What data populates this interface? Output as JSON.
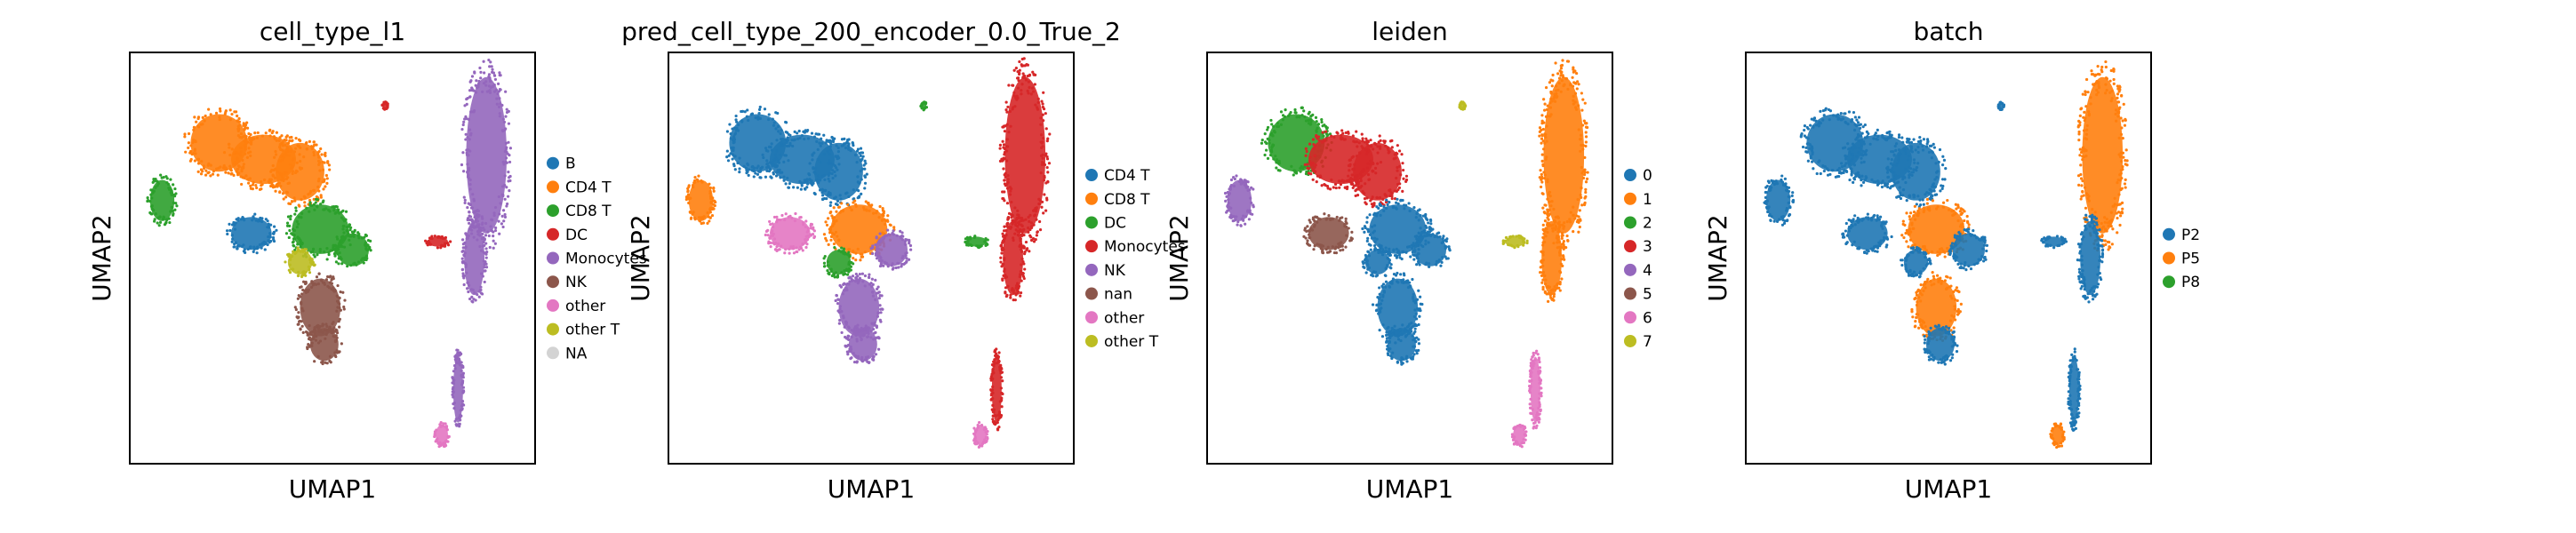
{
  "chart_data": [
    {
      "type": "scatter",
      "title": "cell_type_l1",
      "xlabel": "UMAP1",
      "ylabel": "UMAP2",
      "grid": false,
      "legend_position": "right",
      "legend": [
        {
          "label": "B",
          "color": "#1f77b4"
        },
        {
          "label": "CD4 T",
          "color": "#ff7f0e"
        },
        {
          "label": "CD8 T",
          "color": "#2ca02c"
        },
        {
          "label": "DC",
          "color": "#d62728"
        },
        {
          "label": "Monocytes",
          "color": "#9467bd"
        },
        {
          "label": "NK",
          "color": "#8c564b"
        },
        {
          "label": "other",
          "color": "#e377c2"
        },
        {
          "label": "other T",
          "color": "#bcbd22"
        },
        {
          "label": "NA",
          "color": "#d3d3d3"
        }
      ],
      "regions": [
        {
          "color": "#ff7f0e",
          "x": 0.22,
          "y": 0.78,
          "rx": 0.07,
          "ry": 0.07
        },
        {
          "color": "#ff7f0e",
          "x": 0.33,
          "y": 0.74,
          "rx": 0.08,
          "ry": 0.06
        },
        {
          "color": "#ff7f0e",
          "x": 0.42,
          "y": 0.71,
          "rx": 0.06,
          "ry": 0.07
        },
        {
          "color": "#2ca02c",
          "x": 0.08,
          "y": 0.64,
          "rx": 0.03,
          "ry": 0.05
        },
        {
          "color": "#1f77b4",
          "x": 0.3,
          "y": 0.56,
          "rx": 0.05,
          "ry": 0.04
        },
        {
          "color": "#2ca02c",
          "x": 0.47,
          "y": 0.57,
          "rx": 0.07,
          "ry": 0.06
        },
        {
          "color": "#2ca02c",
          "x": 0.55,
          "y": 0.52,
          "rx": 0.04,
          "ry": 0.04
        },
        {
          "color": "#bcbd22",
          "x": 0.42,
          "y": 0.49,
          "rx": 0.03,
          "ry": 0.03
        },
        {
          "color": "#8c564b",
          "x": 0.47,
          "y": 0.38,
          "rx": 0.05,
          "ry": 0.07
        },
        {
          "color": "#8c564b",
          "x": 0.48,
          "y": 0.29,
          "rx": 0.035,
          "ry": 0.04
        },
        {
          "color": "#9467bd",
          "x": 0.88,
          "y": 0.75,
          "rx": 0.05,
          "ry": 0.19
        },
        {
          "color": "#9467bd",
          "x": 0.85,
          "y": 0.5,
          "rx": 0.025,
          "ry": 0.09
        },
        {
          "color": "#9467bd",
          "x": 0.81,
          "y": 0.18,
          "rx": 0.012,
          "ry": 0.08
        },
        {
          "color": "#d62728",
          "x": 0.76,
          "y": 0.54,
          "rx": 0.025,
          "ry": 0.012
        },
        {
          "color": "#e377c2",
          "x": 0.77,
          "y": 0.07,
          "rx": 0.015,
          "ry": 0.025
        },
        {
          "color": "#d62728",
          "x": 0.63,
          "y": 0.87,
          "rx": 0.006,
          "ry": 0.008
        }
      ]
    },
    {
      "type": "scatter",
      "title": "pred_cell_type_200_encoder_0.0_True_2",
      "xlabel": "UMAP1",
      "ylabel": "UMAP2",
      "grid": false,
      "legend_position": "right",
      "legend": [
        {
          "label": "CD4 T",
          "color": "#1f77b4"
        },
        {
          "label": "CD8 T",
          "color": "#ff7f0e"
        },
        {
          "label": "DC",
          "color": "#2ca02c"
        },
        {
          "label": "Monocytes",
          "color": "#d62728"
        },
        {
          "label": "NK",
          "color": "#9467bd"
        },
        {
          "label": "nan",
          "color": "#8c564b"
        },
        {
          "label": "other",
          "color": "#e377c2"
        },
        {
          "label": "other T",
          "color": "#bcbd22"
        }
      ],
      "regions": [
        {
          "color": "#1f77b4",
          "x": 0.22,
          "y": 0.78,
          "rx": 0.07,
          "ry": 0.07
        },
        {
          "color": "#1f77b4",
          "x": 0.33,
          "y": 0.74,
          "rx": 0.08,
          "ry": 0.06
        },
        {
          "color": "#1f77b4",
          "x": 0.42,
          "y": 0.71,
          "rx": 0.06,
          "ry": 0.07
        },
        {
          "color": "#ff7f0e",
          "x": 0.08,
          "y": 0.64,
          "rx": 0.03,
          "ry": 0.05
        },
        {
          "color": "#e377c2",
          "x": 0.3,
          "y": 0.56,
          "rx": 0.05,
          "ry": 0.04
        },
        {
          "color": "#ff7f0e",
          "x": 0.47,
          "y": 0.57,
          "rx": 0.07,
          "ry": 0.06
        },
        {
          "color": "#9467bd",
          "x": 0.55,
          "y": 0.52,
          "rx": 0.04,
          "ry": 0.04
        },
        {
          "color": "#2ca02c",
          "x": 0.42,
          "y": 0.49,
          "rx": 0.03,
          "ry": 0.03
        },
        {
          "color": "#9467bd",
          "x": 0.47,
          "y": 0.38,
          "rx": 0.05,
          "ry": 0.07
        },
        {
          "color": "#9467bd",
          "x": 0.48,
          "y": 0.29,
          "rx": 0.035,
          "ry": 0.04
        },
        {
          "color": "#d62728",
          "x": 0.88,
          "y": 0.75,
          "rx": 0.05,
          "ry": 0.19
        },
        {
          "color": "#d62728",
          "x": 0.85,
          "y": 0.5,
          "rx": 0.025,
          "ry": 0.09
        },
        {
          "color": "#d62728",
          "x": 0.81,
          "y": 0.18,
          "rx": 0.012,
          "ry": 0.08
        },
        {
          "color": "#2ca02c",
          "x": 0.76,
          "y": 0.54,
          "rx": 0.025,
          "ry": 0.012
        },
        {
          "color": "#e377c2",
          "x": 0.77,
          "y": 0.07,
          "rx": 0.015,
          "ry": 0.025
        },
        {
          "color": "#2ca02c",
          "x": 0.63,
          "y": 0.87,
          "rx": 0.006,
          "ry": 0.008
        }
      ]
    },
    {
      "type": "scatter",
      "title": "leiden",
      "xlabel": "UMAP1",
      "ylabel": "UMAP2",
      "grid": false,
      "legend_position": "right",
      "legend": [
        {
          "label": "0",
          "color": "#1f77b4"
        },
        {
          "label": "1",
          "color": "#ff7f0e"
        },
        {
          "label": "2",
          "color": "#2ca02c"
        },
        {
          "label": "3",
          "color": "#d62728"
        },
        {
          "label": "4",
          "color": "#9467bd"
        },
        {
          "label": "5",
          "color": "#8c564b"
        },
        {
          "label": "6",
          "color": "#e377c2"
        },
        {
          "label": "7",
          "color": "#bcbd22"
        }
      ],
      "regions": [
        {
          "color": "#2ca02c",
          "x": 0.22,
          "y": 0.78,
          "rx": 0.07,
          "ry": 0.07
        },
        {
          "color": "#d62728",
          "x": 0.33,
          "y": 0.74,
          "rx": 0.08,
          "ry": 0.06
        },
        {
          "color": "#d62728",
          "x": 0.42,
          "y": 0.71,
          "rx": 0.06,
          "ry": 0.07
        },
        {
          "color": "#9467bd",
          "x": 0.08,
          "y": 0.64,
          "rx": 0.03,
          "ry": 0.05
        },
        {
          "color": "#8c564b",
          "x": 0.3,
          "y": 0.56,
          "rx": 0.05,
          "ry": 0.04
        },
        {
          "color": "#1f77b4",
          "x": 0.47,
          "y": 0.57,
          "rx": 0.07,
          "ry": 0.06
        },
        {
          "color": "#1f77b4",
          "x": 0.55,
          "y": 0.52,
          "rx": 0.04,
          "ry": 0.04
        },
        {
          "color": "#1f77b4",
          "x": 0.42,
          "y": 0.49,
          "rx": 0.03,
          "ry": 0.03
        },
        {
          "color": "#1f77b4",
          "x": 0.47,
          "y": 0.38,
          "rx": 0.05,
          "ry": 0.07
        },
        {
          "color": "#1f77b4",
          "x": 0.48,
          "y": 0.29,
          "rx": 0.035,
          "ry": 0.04
        },
        {
          "color": "#ff7f0e",
          "x": 0.88,
          "y": 0.75,
          "rx": 0.05,
          "ry": 0.19
        },
        {
          "color": "#ff7f0e",
          "x": 0.85,
          "y": 0.5,
          "rx": 0.025,
          "ry": 0.09
        },
        {
          "color": "#e377c2",
          "x": 0.81,
          "y": 0.18,
          "rx": 0.012,
          "ry": 0.08
        },
        {
          "color": "#bcbd22",
          "x": 0.76,
          "y": 0.54,
          "rx": 0.025,
          "ry": 0.012
        },
        {
          "color": "#e377c2",
          "x": 0.77,
          "y": 0.07,
          "rx": 0.015,
          "ry": 0.025
        },
        {
          "color": "#bcbd22",
          "x": 0.63,
          "y": 0.87,
          "rx": 0.006,
          "ry": 0.008
        }
      ]
    },
    {
      "type": "scatter",
      "title": "batch",
      "xlabel": "UMAP1",
      "ylabel": "UMAP2",
      "grid": false,
      "legend_position": "right",
      "legend": [
        {
          "label": "P2",
          "color": "#1f77b4"
        },
        {
          "label": "P5",
          "color": "#ff7f0e"
        },
        {
          "label": "P8",
          "color": "#2ca02c"
        }
      ],
      "regions": [
        {
          "color": "#1f77b4",
          "x": 0.22,
          "y": 0.78,
          "rx": 0.07,
          "ry": 0.07
        },
        {
          "color": "#1f77b4",
          "x": 0.33,
          "y": 0.74,
          "rx": 0.08,
          "ry": 0.06
        },
        {
          "color": "#1f77b4",
          "x": 0.42,
          "y": 0.71,
          "rx": 0.06,
          "ry": 0.07
        },
        {
          "color": "#1f77b4",
          "x": 0.08,
          "y": 0.64,
          "rx": 0.03,
          "ry": 0.05
        },
        {
          "color": "#1f77b4",
          "x": 0.3,
          "y": 0.56,
          "rx": 0.05,
          "ry": 0.04
        },
        {
          "color": "#ff7f0e",
          "x": 0.47,
          "y": 0.57,
          "rx": 0.07,
          "ry": 0.06
        },
        {
          "color": "#1f77b4",
          "x": 0.55,
          "y": 0.52,
          "rx": 0.04,
          "ry": 0.04
        },
        {
          "color": "#1f77b4",
          "x": 0.42,
          "y": 0.49,
          "rx": 0.03,
          "ry": 0.03
        },
        {
          "color": "#ff7f0e",
          "x": 0.47,
          "y": 0.38,
          "rx": 0.05,
          "ry": 0.07
        },
        {
          "color": "#1f77b4",
          "x": 0.48,
          "y": 0.29,
          "rx": 0.035,
          "ry": 0.04
        },
        {
          "color": "#ff7f0e",
          "x": 0.88,
          "y": 0.75,
          "rx": 0.05,
          "ry": 0.19
        },
        {
          "color": "#1f77b4",
          "x": 0.85,
          "y": 0.5,
          "rx": 0.025,
          "ry": 0.09
        },
        {
          "color": "#1f77b4",
          "x": 0.81,
          "y": 0.18,
          "rx": 0.012,
          "ry": 0.08
        },
        {
          "color": "#1f77b4",
          "x": 0.76,
          "y": 0.54,
          "rx": 0.025,
          "ry": 0.012
        },
        {
          "color": "#ff7f0e",
          "x": 0.77,
          "y": 0.07,
          "rx": 0.015,
          "ry": 0.025
        },
        {
          "color": "#1f77b4",
          "x": 0.63,
          "y": 0.87,
          "rx": 0.006,
          "ry": 0.008
        }
      ]
    }
  ]
}
